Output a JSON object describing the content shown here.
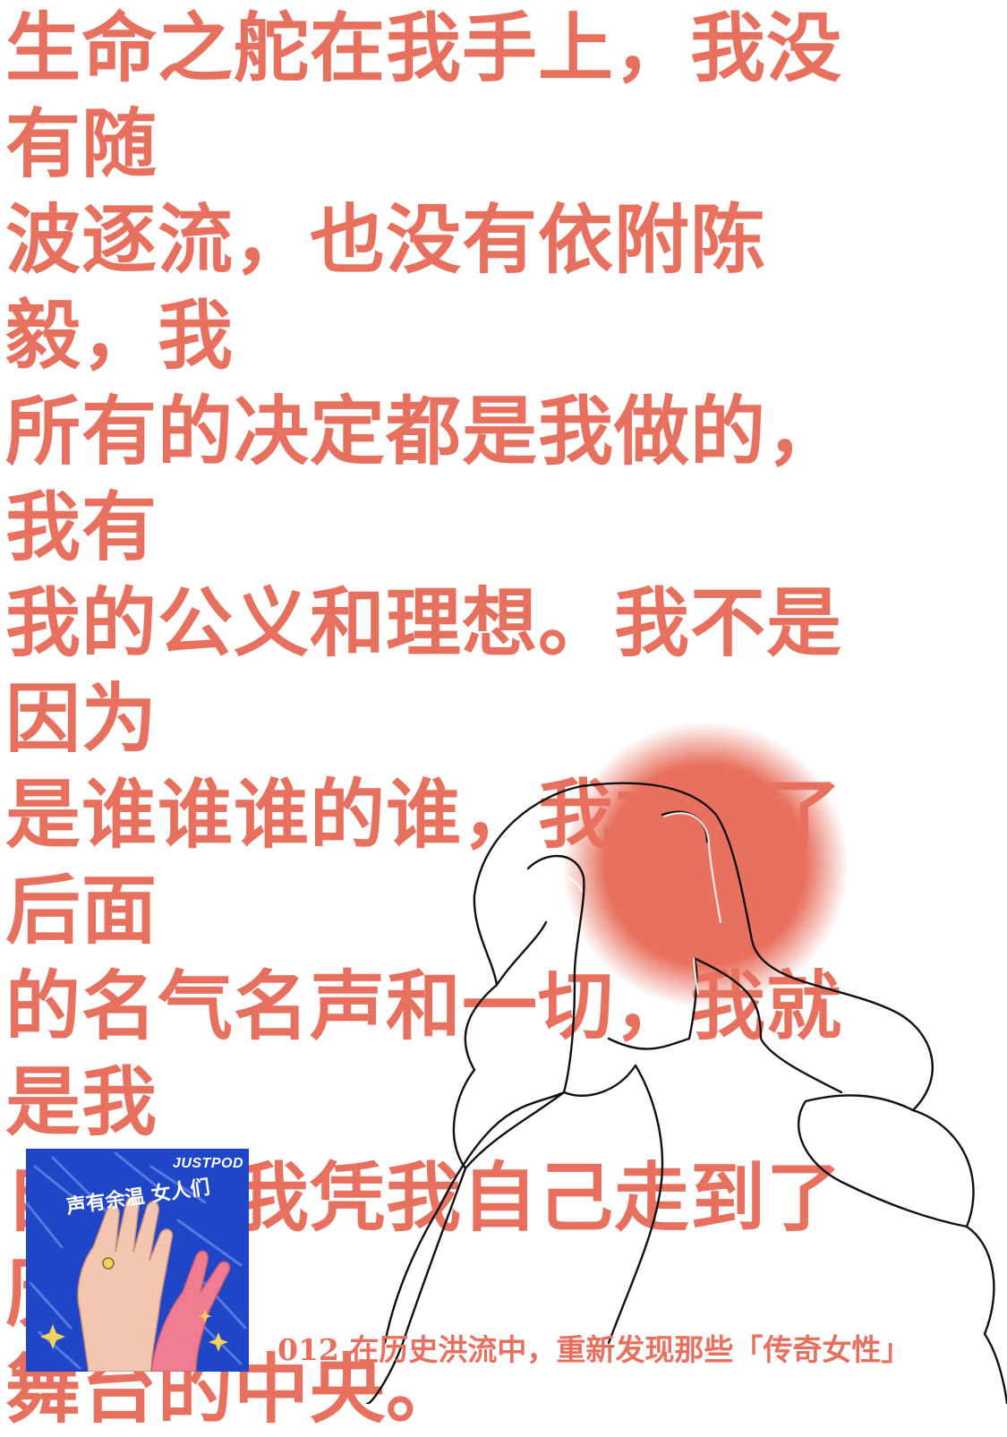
{
  "quote": {
    "text": "生命之舵在我手上，我没有随\n波逐流，也没有依附陈毅，我\n所有的决定都是我做的，我有\n我的公义和理想。我不是因为\n是谁谁谁的谁，我才有了后面\n的名气名声和一切，我就是我\n自己，我凭我自己走到了历史\n舞台的中央。"
  },
  "podcast": {
    "brand": "JUSTPOD",
    "cover_title": "声有余温 女人们",
    "episode_caption": "012 在历史洪流中，重新发现那些「传奇女性」"
  },
  "colors": {
    "accent": "#E8705E",
    "cover_blue": "#2046C8",
    "line_art": "#111111"
  }
}
